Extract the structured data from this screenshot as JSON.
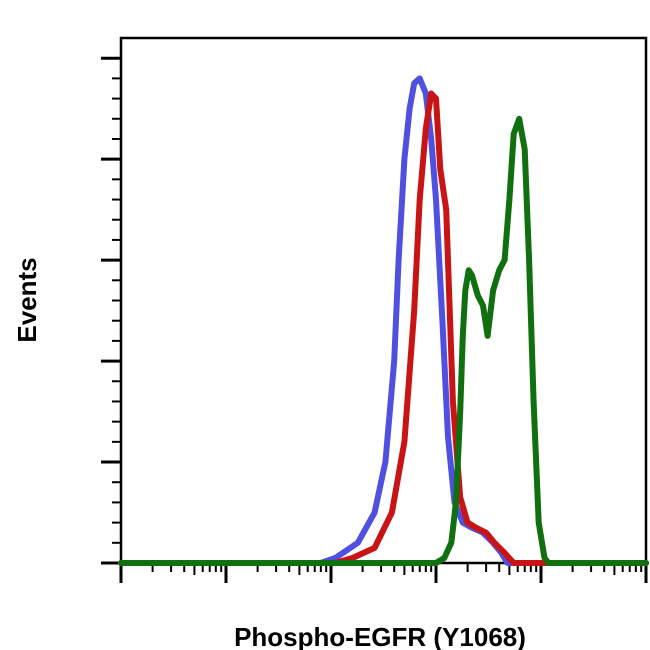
{
  "chart_data": {
    "type": "line",
    "title": "",
    "xlabel": "Phospho-EGFR (Y1068)",
    "ylabel": "Events",
    "x_scale": "log",
    "xlim": [
      1,
      100000
    ],
    "ylim": [
      0,
      1.04
    ],
    "x_major_ticks": [
      1,
      10,
      100,
      1000,
      10000,
      100000
    ],
    "y_major_ticks": [
      0,
      0.2,
      0.4,
      0.6,
      0.8,
      1.0
    ],
    "legend": "none",
    "grid": false,
    "series": [
      {
        "color": "#5050e0",
        "x": [
          1,
          10,
          80,
          110,
          180,
          260,
          330,
          400,
          440,
          500,
          560,
          620,
          700,
          800,
          900,
          1000,
          1150,
          1300,
          1500,
          1800,
          2200,
          2800,
          3500,
          4200,
          4800,
          100000
        ],
        "y": [
          0,
          0,
          0,
          0.01,
          0.04,
          0.1,
          0.2,
          0.4,
          0.6,
          0.8,
          0.9,
          0.95,
          0.96,
          0.93,
          0.84,
          0.72,
          0.48,
          0.25,
          0.12,
          0.08,
          0.07,
          0.06,
          0.04,
          0.02,
          0,
          0
        ]
      },
      {
        "color": "#c81414",
        "x": [
          1,
          10,
          110,
          160,
          260,
          380,
          500,
          620,
          700,
          800,
          900,
          1000,
          1100,
          1250,
          1450,
          1700,
          2000,
          2400,
          3000,
          3600,
          4500,
          5500,
          100000
        ],
        "y": [
          0,
          0,
          0,
          0.01,
          0.03,
          0.1,
          0.24,
          0.5,
          0.72,
          0.86,
          0.93,
          0.92,
          0.78,
          0.7,
          0.32,
          0.13,
          0.08,
          0.07,
          0.06,
          0.04,
          0.02,
          0,
          0
        ]
      },
      {
        "color": "#107010",
        "x": [
          1,
          10,
          100,
          1000,
          1200,
          1400,
          1550,
          1700,
          1800,
          1900,
          2050,
          2200,
          2500,
          2800,
          3100,
          3500,
          4000,
          4500,
          5000,
          5500,
          6200,
          7000,
          7700,
          8500,
          9500,
          10800,
          11800,
          100000
        ],
        "y": [
          0,
          0,
          0,
          0,
          0.01,
          0.04,
          0.12,
          0.3,
          0.45,
          0.54,
          0.58,
          0.57,
          0.53,
          0.51,
          0.45,
          0.54,
          0.58,
          0.6,
          0.72,
          0.85,
          0.88,
          0.82,
          0.6,
          0.32,
          0.08,
          0.01,
          0,
          0
        ]
      }
    ]
  }
}
